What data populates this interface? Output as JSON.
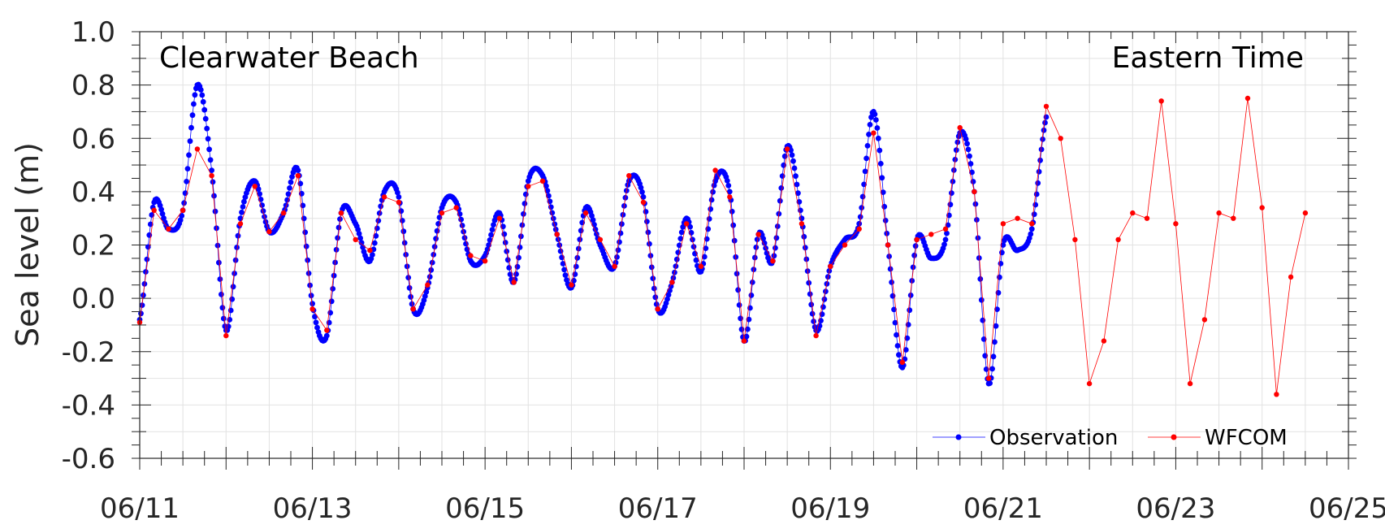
{
  "chart_data": {
    "type": "line",
    "annotations": {
      "location": "Clearwater Beach",
      "timezone": "Eastern Time"
    },
    "ylabel": "Sea level (m)",
    "xlabel": "",
    "ylim": [
      -0.6,
      1.0
    ],
    "yticks": [
      "-0.6",
      "-0.4",
      "-0.2",
      "0.0",
      "0.2",
      "0.4",
      "0.6",
      "0.8",
      "1.0"
    ],
    "xlim": [
      "2023-06-11",
      "2023-06-25"
    ],
    "xticks": [
      "06/11",
      "06/13",
      "06/15",
      "06/17",
      "06/19",
      "06/21",
      "06/23",
      "06/25"
    ],
    "grid": true,
    "legend": "bottom-right",
    "series": [
      {
        "name": "Observation",
        "color": "#0000ff",
        "marker": "circle",
        "x": [
          "2023-06-11 00:00",
          "2023-06-11 04:00",
          "2023-06-11 08:00",
          "2023-06-11 12:00",
          "2023-06-11 16:00",
          "2023-06-11 20:00",
          "2023-06-12 00:00",
          "2023-06-12 04:00",
          "2023-06-12 08:00",
          "2023-06-12 12:00",
          "2023-06-12 16:00",
          "2023-06-12 20:00",
          "2023-06-13 00:00",
          "2023-06-13 04:00",
          "2023-06-13 08:00",
          "2023-06-13 12:00",
          "2023-06-13 16:00",
          "2023-06-13 20:00",
          "2023-06-14 00:00",
          "2023-06-14 04:00",
          "2023-06-14 08:00",
          "2023-06-14 12:00",
          "2023-06-14 16:00",
          "2023-06-14 20:00",
          "2023-06-15 00:00",
          "2023-06-15 04:00",
          "2023-06-15 08:00",
          "2023-06-15 12:00",
          "2023-06-15 16:00",
          "2023-06-15 20:00",
          "2023-06-16 00:00",
          "2023-06-16 04:00",
          "2023-06-16 08:00",
          "2023-06-16 12:00",
          "2023-06-16 16:00",
          "2023-06-16 20:00",
          "2023-06-17 00:00",
          "2023-06-17 04:00",
          "2023-06-17 08:00",
          "2023-06-17 12:00",
          "2023-06-17 16:00",
          "2023-06-17 20:00",
          "2023-06-18 00:00",
          "2023-06-18 04:00",
          "2023-06-18 08:00",
          "2023-06-18 12:00",
          "2023-06-18 16:00",
          "2023-06-18 20:00",
          "2023-06-19 00:00",
          "2023-06-19 04:00",
          "2023-06-19 08:00",
          "2023-06-19 12:00",
          "2023-06-19 16:00",
          "2023-06-19 20:00",
          "2023-06-20 00:00",
          "2023-06-20 04:00",
          "2023-06-20 08:00",
          "2023-06-20 12:00",
          "2023-06-20 16:00",
          "2023-06-20 20:00",
          "2023-06-21 00:00",
          "2023-06-21 04:00",
          "2023-06-21 08:00",
          "2023-06-21 12:00"
        ],
        "y": [
          -0.08,
          0.36,
          0.26,
          0.33,
          0.8,
          0.48,
          -0.12,
          0.3,
          0.44,
          0.25,
          0.32,
          0.48,
          -0.02,
          -0.14,
          0.32,
          0.28,
          0.14,
          0.4,
          0.38,
          -0.04,
          0.04,
          0.34,
          0.36,
          0.14,
          0.16,
          0.32,
          0.06,
          0.44,
          0.46,
          0.24,
          0.04,
          0.34,
          0.2,
          0.12,
          0.44,
          0.38,
          -0.04,
          0.06,
          0.3,
          0.1,
          0.44,
          0.4,
          -0.16,
          0.24,
          0.14,
          0.57,
          0.3,
          -0.12,
          0.12,
          0.22,
          0.28,
          0.7,
          0.2,
          -0.26,
          0.22,
          0.15,
          0.22,
          0.62,
          0.4,
          -0.32,
          0.2,
          0.18,
          0.26,
          0.68
        ]
      },
      {
        "name": "WFCOM",
        "color": "#ff0000",
        "marker": "circle",
        "x": [
          "2023-06-11 00:00",
          "2023-06-11 04:00",
          "2023-06-11 08:00",
          "2023-06-11 12:00",
          "2023-06-11 16:00",
          "2023-06-11 20:00",
          "2023-06-12 00:00",
          "2023-06-12 04:00",
          "2023-06-12 08:00",
          "2023-06-12 12:00",
          "2023-06-12 16:00",
          "2023-06-12 20:00",
          "2023-06-13 00:00",
          "2023-06-13 04:00",
          "2023-06-13 08:00",
          "2023-06-13 12:00",
          "2023-06-13 16:00",
          "2023-06-13 20:00",
          "2023-06-14 00:00",
          "2023-06-14 04:00",
          "2023-06-14 08:00",
          "2023-06-14 12:00",
          "2023-06-14 16:00",
          "2023-06-14 20:00",
          "2023-06-15 00:00",
          "2023-06-15 04:00",
          "2023-06-15 08:00",
          "2023-06-15 12:00",
          "2023-06-15 16:00",
          "2023-06-15 20:00",
          "2023-06-16 00:00",
          "2023-06-16 04:00",
          "2023-06-16 08:00",
          "2023-06-16 12:00",
          "2023-06-16 16:00",
          "2023-06-16 20:00",
          "2023-06-17 00:00",
          "2023-06-17 04:00",
          "2023-06-17 08:00",
          "2023-06-17 12:00",
          "2023-06-17 16:00",
          "2023-06-17 20:00",
          "2023-06-18 00:00",
          "2023-06-18 04:00",
          "2023-06-18 08:00",
          "2023-06-18 12:00",
          "2023-06-18 16:00",
          "2023-06-18 20:00",
          "2023-06-19 00:00",
          "2023-06-19 04:00",
          "2023-06-19 08:00",
          "2023-06-19 12:00",
          "2023-06-19 16:00",
          "2023-06-19 20:00",
          "2023-06-20 00:00",
          "2023-06-20 04:00",
          "2023-06-20 08:00",
          "2023-06-20 12:00",
          "2023-06-20 16:00",
          "2023-06-20 20:00",
          "2023-06-21 00:00",
          "2023-06-21 04:00",
          "2023-06-21 08:00",
          "2023-06-21 12:00",
          "2023-06-21 16:00",
          "2023-06-21 20:00",
          "2023-06-22 00:00",
          "2023-06-22 04:00",
          "2023-06-22 08:00",
          "2023-06-22 12:00",
          "2023-06-22 16:00",
          "2023-06-22 20:00",
          "2023-06-23 00:00",
          "2023-06-23 04:00",
          "2023-06-23 08:00",
          "2023-06-23 12:00",
          "2023-06-23 16:00",
          "2023-06-23 20:00",
          "2023-06-24 00:00",
          "2023-06-24 04:00",
          "2023-06-24 08:00",
          "2023-06-24 12:00"
        ],
        "y": [
          -0.09,
          0.33,
          0.26,
          0.33,
          0.56,
          0.46,
          -0.14,
          0.28,
          0.42,
          0.25,
          0.32,
          0.46,
          -0.04,
          -0.12,
          0.32,
          0.22,
          0.18,
          0.38,
          0.36,
          -0.04,
          0.05,
          0.32,
          0.34,
          0.16,
          0.14,
          0.3,
          0.06,
          0.42,
          0.44,
          0.24,
          0.05,
          0.32,
          0.22,
          0.12,
          0.46,
          0.36,
          -0.04,
          0.06,
          0.28,
          0.12,
          0.48,
          0.38,
          -0.16,
          0.24,
          0.14,
          0.56,
          0.28,
          -0.14,
          0.12,
          0.2,
          0.26,
          0.62,
          0.2,
          -0.24,
          0.22,
          0.24,
          0.26,
          0.64,
          0.4,
          -0.3,
          0.28,
          0.3,
          0.28,
          0.72,
          0.6,
          0.22,
          -0.32,
          -0.16,
          0.22,
          0.32,
          0.3,
          0.74,
          0.28,
          -0.32,
          -0.08,
          0.32,
          0.3,
          0.75,
          0.34,
          -0.36,
          0.08,
          0.32
        ]
      }
    ]
  }
}
